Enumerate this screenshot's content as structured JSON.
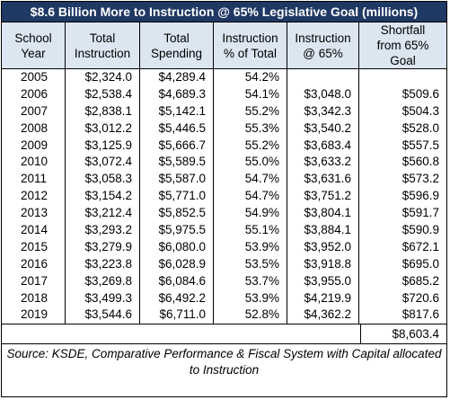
{
  "title": "$8.6 Billion More to Instruction @ 65% Legislative Goal (millions)",
  "headers": [
    "School\nYear",
    "Total\nInstruction",
    "Total\nSpending",
    "Instruction\n% of Total",
    "Instruction\n@ 65%",
    "Shortfall\nfrom 65%\nGoal"
  ],
  "rows": [
    [
      "2005",
      "$2,324.0",
      "$4,289.4",
      "54.2%",
      "",
      ""
    ],
    [
      "2006",
      "$2,538.4",
      "$4,689.3",
      "54.1%",
      "$3,048.0",
      "$509.6"
    ],
    [
      "2007",
      "$2,838.1",
      "$5,142.1",
      "55.2%",
      "$3,342.3",
      "$504.3"
    ],
    [
      "2008",
      "$3,012.2",
      "$5,446.5",
      "55.3%",
      "$3,540.2",
      "$528.0"
    ],
    [
      "2009",
      "$3,125.9",
      "$5,666.7",
      "55.2%",
      "$3,683.4",
      "$557.5"
    ],
    [
      "2010",
      "$3,072.4",
      "$5,589.5",
      "55.0%",
      "$3,633.2",
      "$560.8"
    ],
    [
      "2011",
      "$3,058.3",
      "$5,587.0",
      "54.7%",
      "$3,631.6",
      "$573.2"
    ],
    [
      "2012",
      "$3,154.2",
      "$5,771.0",
      "54.7%",
      "$3,751.2",
      "$596.9"
    ],
    [
      "2013",
      "$3,212.4",
      "$5,852.5",
      "54.9%",
      "$3,804.1",
      "$591.7"
    ],
    [
      "2014",
      "$3,293.2",
      "$5,975.5",
      "55.1%",
      "$3,884.1",
      "$590.9"
    ],
    [
      "2015",
      "$3,279.9",
      "$6,080.0",
      "53.9%",
      "$3,952.0",
      "$672.1"
    ],
    [
      "2016",
      "$3,223.8",
      "$6,028.9",
      "53.5%",
      "$3,918.8",
      "$695.0"
    ],
    [
      "2017",
      "$3,269.8",
      "$6,084.6",
      "53.7%",
      "$3,955.0",
      "$685.2"
    ],
    [
      "2018",
      "$3,499.3",
      "$6,492.2",
      "53.9%",
      "$4,219.9",
      "$720.6"
    ],
    [
      "2019",
      "$3,544.6",
      "$6,711.0",
      "52.8%",
      "$4,362.2",
      "$817.6"
    ]
  ],
  "total": "$8,603.4",
  "source": "Source: KSDE, Comparative Performance & Fiscal System with Capital allocated to Instruction"
}
